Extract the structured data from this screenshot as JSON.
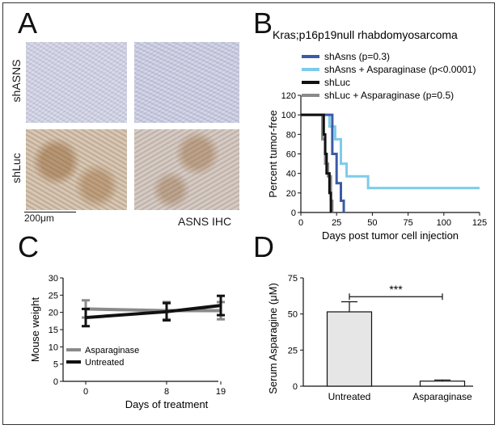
{
  "panels": {
    "a": {
      "letter": "A",
      "row_labels": [
        "shASNS",
        "shLuc"
      ],
      "scale_bar": "200μm",
      "stain_label": "ASNS IHC"
    },
    "b": {
      "letter": "B",
      "title": "Kras;p16p19null rhabdomyosarcoma"
    },
    "c": {
      "letter": "C"
    },
    "d": {
      "letter": "D"
    }
  },
  "chart_data": [
    {
      "panel": "B",
      "type": "line",
      "step": true,
      "title": "Kras;p16p19null rhabdomyosarcoma",
      "xlabel": "Days post tumor cell injection",
      "ylabel": "Percent tumor-free",
      "xlim": [
        0,
        125
      ],
      "ylim": [
        0,
        120
      ],
      "xticks": [
        0,
        25,
        50,
        75,
        100,
        125
      ],
      "yticks": [
        0,
        20,
        40,
        60,
        80,
        100,
        120
      ],
      "legend_position": "top",
      "series": [
        {
          "name": "shAsns (p=0.3)",
          "color": "#3b5ba5",
          "x": [
            0,
            22,
            22,
            25,
            25,
            28,
            28,
            30,
            30
          ],
          "y": [
            100,
            100,
            60,
            60,
            30,
            30,
            12,
            12,
            0
          ]
        },
        {
          "name": "shAsns + Asparaginase (p<0.0001)",
          "color": "#7ecbea",
          "x": [
            0,
            20,
            20,
            24,
            24,
            28,
            28,
            32,
            32,
            47,
            47,
            125
          ],
          "y": [
            100,
            100,
            88,
            88,
            75,
            75,
            50,
            50,
            37,
            37,
            25,
            25
          ]
        },
        {
          "name": "shLuc",
          "color": "#111111",
          "x": [
            0,
            16,
            16,
            17,
            17,
            18,
            18,
            20,
            20,
            21,
            21
          ],
          "y": [
            100,
            100,
            80,
            80,
            60,
            60,
            40,
            40,
            20,
            20,
            0
          ]
        },
        {
          "name": "shLuc + Asparaginase (p=0.5)",
          "color": "#8a8a8a",
          "x": [
            0,
            15,
            15,
            17,
            17,
            19,
            19,
            21,
            21,
            22,
            22
          ],
          "y": [
            100,
            100,
            75,
            75,
            50,
            50,
            37,
            37,
            12,
            12,
            0
          ]
        }
      ]
    },
    {
      "panel": "C",
      "type": "line",
      "xlabel": "Days of treatment",
      "ylabel": "Mouse weight",
      "categories": [
        "0",
        "8",
        "19"
      ],
      "ylim": [
        0,
        30
      ],
      "yticks": [
        0,
        5,
        10,
        15,
        20,
        25,
        30
      ],
      "legend_position": "bottom-left",
      "series": [
        {
          "name": "Asparaginase",
          "color": "#8a8a8a",
          "values": [
            21,
            20.5,
            20.5
          ],
          "error": [
            2.5,
            2.5,
            2.5
          ]
        },
        {
          "name": "Untreated",
          "color": "#111111",
          "values": [
            18.5,
            20.2,
            22
          ],
          "error": [
            2.5,
            2.5,
            2.8
          ]
        }
      ]
    },
    {
      "panel": "D",
      "type": "bar",
      "ylabel": "Serum Asparagine (μM)",
      "categories": [
        "Untreated",
        "Asparaginase"
      ],
      "values": [
        51.5,
        3.5
      ],
      "error": [
        7,
        0.8
      ],
      "ylim": [
        0,
        75
      ],
      "yticks": [
        0,
        25,
        50,
        75
      ],
      "annotation": "***",
      "colors": [
        "#e6e6e6",
        "#ffffff"
      ]
    }
  ]
}
